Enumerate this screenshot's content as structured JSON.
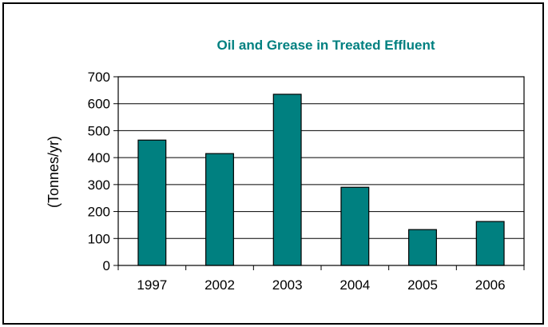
{
  "chart_data": {
    "type": "bar",
    "title": "Oil and Grease in Treated Effluent",
    "ylabel": "(Tonnes/yr)",
    "xlabel": "",
    "categories": [
      "1997",
      "2002",
      "2003",
      "2004",
      "2005",
      "2006"
    ],
    "values": [
      465,
      415,
      635,
      290,
      133,
      163
    ],
    "ylim": [
      0,
      700
    ],
    "yticks": [
      "0",
      "100",
      "200",
      "300",
      "400",
      "500",
      "600",
      "700"
    ],
    "grid": true,
    "legend": "none",
    "colors": {
      "bar": "#008080",
      "title": "#008080"
    }
  }
}
